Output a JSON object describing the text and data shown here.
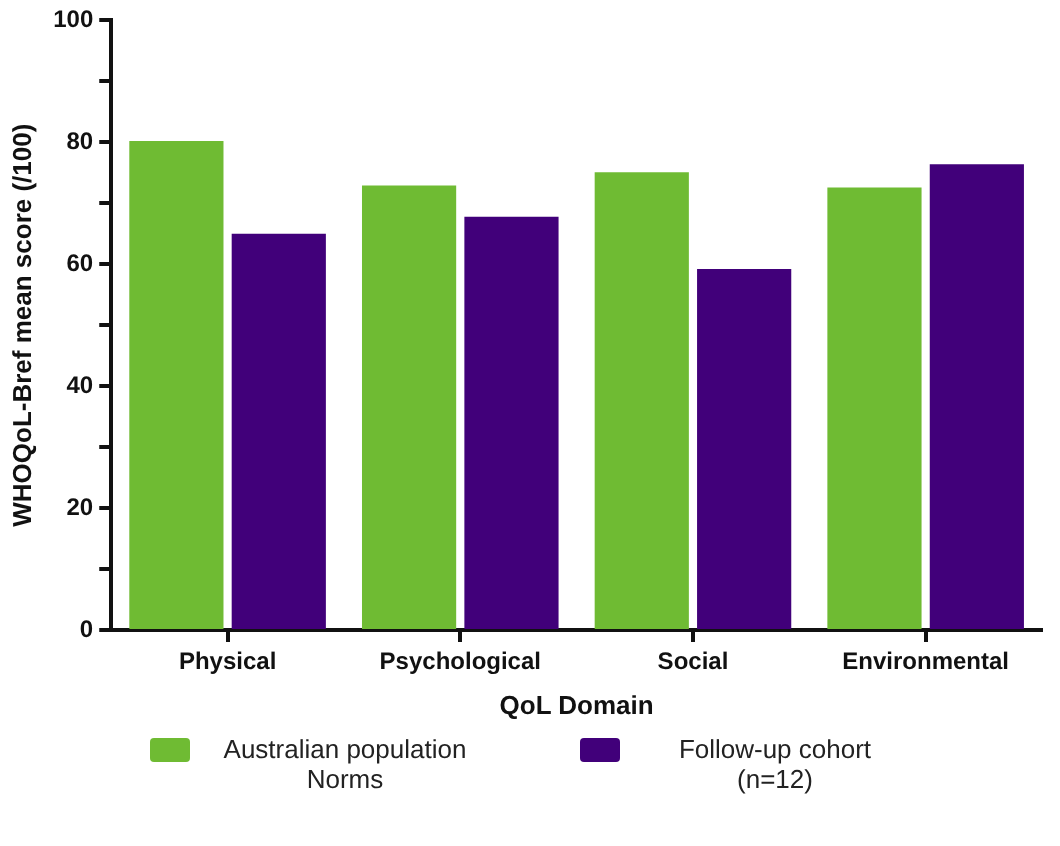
{
  "chart_data": {
    "type": "bar",
    "xlabel": "QoL Domain",
    "ylabel": "WHOQoL-Bref mean score (/100)",
    "categories": [
      "Physical",
      "Psychological",
      "Social",
      "Environmental"
    ],
    "series": [
      {
        "name": "Australian population Norms",
        "color": "#6fbb33",
        "values": [
          80.2,
          72.9,
          75.1,
          72.6
        ]
      },
      {
        "name": "Follow-up cohort (n=12)",
        "color": "#41007a",
        "values": [
          65.0,
          67.8,
          59.2,
          76.4
        ]
      }
    ],
    "ylim": [
      0,
      100
    ],
    "yticks": [
      0,
      {
        "value": 10,
        "label": null
      },
      20,
      {
        "value": 30,
        "label": null
      },
      40,
      {
        "value": 50,
        "label": null
      },
      60,
      {
        "value": 70,
        "label": null
      },
      80,
      {
        "value": 90,
        "label": null
      },
      100
    ],
    "grid": false,
    "legend": "bottom"
  }
}
